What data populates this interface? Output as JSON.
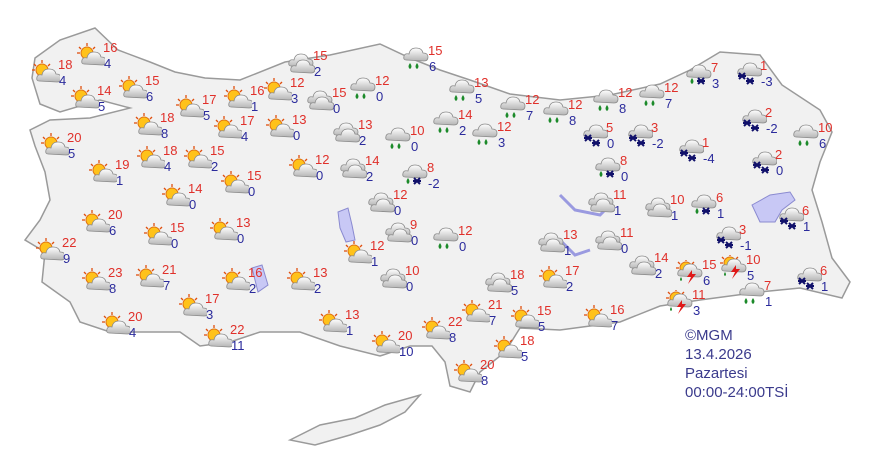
{
  "legend": {
    "copyright": "©MGM",
    "date": "13.4.2026",
    "weekday": "Pazartesi",
    "period": "00:00-24:00TSİ"
  },
  "colors": {
    "max_temp": "#e0302a",
    "min_temp": "#2b2b9c",
    "land": "#f1f1f1",
    "water": "#c8c8f5"
  },
  "icon_types": {
    "pc": "partly-cloudy",
    "cl": "cloudy",
    "rn": "rain",
    "sn": "snow",
    "rs": "rain-and-snow",
    "ts": "thunderstorm"
  },
  "stations": [
    {
      "icon": "pc",
      "max": "18",
      "min": "4"
    },
    {
      "icon": "pc",
      "max": "16",
      "min": "4"
    },
    {
      "icon": "pc",
      "max": "14",
      "min": "5"
    },
    {
      "icon": "pc",
      "max": "15",
      "min": "6"
    },
    {
      "icon": "pc",
      "max": "17",
      "min": "5"
    },
    {
      "icon": "pc",
      "max": "16",
      "min": "1"
    },
    {
      "icon": "pc",
      "max": "12",
      "min": "3"
    },
    {
      "icon": "pc",
      "max": "18",
      "min": "8"
    },
    {
      "icon": "pc",
      "max": "17",
      "min": "4"
    },
    {
      "icon": "pc",
      "max": "13",
      "min": "0"
    },
    {
      "icon": "cl",
      "max": "15",
      "min": "2"
    },
    {
      "icon": "cl",
      "max": "15",
      "min": "0"
    },
    {
      "icon": "rn",
      "max": "12",
      "min": "0"
    },
    {
      "icon": "rn",
      "max": "15",
      "min": "6"
    },
    {
      "icon": "pc",
      "max": "20",
      "min": "5"
    },
    {
      "icon": "pc",
      "max": "19",
      "min": "1"
    },
    {
      "icon": "pc",
      "max": "18",
      "min": "4"
    },
    {
      "icon": "pc",
      "max": "15",
      "min": "2"
    },
    {
      "icon": "pc",
      "max": "12",
      "min": "0"
    },
    {
      "icon": "cl",
      "max": "13",
      "min": "2"
    },
    {
      "icon": "rn",
      "max": "10",
      "min": "0"
    },
    {
      "icon": "cl",
      "max": "14",
      "min": "2"
    },
    {
      "icon": "rs",
      "max": "8",
      "min": "-2"
    },
    {
      "icon": "cl",
      "max": "12",
      "min": "0"
    },
    {
      "icon": "pc",
      "max": "14",
      "min": "0"
    },
    {
      "icon": "pc",
      "max": "15",
      "min": "0"
    },
    {
      "icon": "pc",
      "max": "20",
      "min": "6"
    },
    {
      "icon": "pc",
      "max": "15",
      "min": "0"
    },
    {
      "icon": "pc",
      "max": "13",
      "min": "0"
    },
    {
      "icon": "pc",
      "max": "22",
      "min": "9"
    },
    {
      "icon": "pc",
      "max": "23",
      "min": "8"
    },
    {
      "icon": "pc",
      "max": "21",
      "min": "7"
    },
    {
      "icon": "pc",
      "max": "16",
      "min": "2"
    },
    {
      "icon": "pc",
      "max": "13",
      "min": "2"
    },
    {
      "icon": "pc",
      "max": "17",
      "min": "3"
    },
    {
      "icon": "pc",
      "max": "20",
      "min": "4"
    },
    {
      "icon": "pc",
      "max": "22",
      "min": "11"
    },
    {
      "icon": "pc",
      "max": "12",
      "min": "1"
    },
    {
      "icon": "cl",
      "max": "9",
      "min": "0"
    },
    {
      "icon": "cl",
      "max": "10",
      "min": "0"
    },
    {
      "icon": "pc",
      "max": "13",
      "min": "1"
    },
    {
      "icon": "pc",
      "max": "20",
      "min": "10"
    },
    {
      "icon": "pc",
      "max": "22",
      "min": "8"
    },
    {
      "icon": "pc",
      "max": "20",
      "min": "8"
    },
    {
      "icon": "cl",
      "max": "18",
      "min": "5"
    },
    {
      "icon": "pc",
      "max": "17",
      "min": "2"
    },
    {
      "icon": "pc",
      "max": "21",
      "min": "7"
    },
    {
      "icon": "pc",
      "max": "15",
      "min": "5"
    },
    {
      "icon": "pc",
      "max": "18",
      "min": "5"
    },
    {
      "icon": "pc",
      "max": "16",
      "min": "7"
    },
    {
      "icon": "cl",
      "max": "13",
      "min": "1"
    },
    {
      "icon": "cl",
      "max": "11",
      "min": "0"
    },
    {
      "icon": "cl",
      "max": "11",
      "min": "1"
    },
    {
      "icon": "rn",
      "max": "12",
      "min": "0"
    },
    {
      "icon": "rn",
      "max": "13",
      "min": "5"
    },
    {
      "icon": "rn",
      "max": "12",
      "min": "7"
    },
    {
      "icon": "rn",
      "max": "12",
      "min": "8"
    },
    {
      "icon": "rn",
      "max": "12",
      "min": "8"
    },
    {
      "icon": "rn",
      "max": "12",
      "min": "7"
    },
    {
      "icon": "rs",
      "max": "7",
      "min": "3"
    },
    {
      "icon": "sn",
      "max": "1",
      "min": "-3"
    },
    {
      "icon": "rn",
      "max": "14",
      "min": "2"
    },
    {
      "icon": "rn",
      "max": "12",
      "min": "3"
    },
    {
      "icon": "sn",
      "max": "5",
      "min": "0"
    },
    {
      "icon": "sn",
      "max": "3",
      "min": "-2"
    },
    {
      "icon": "sn",
      "max": "1",
      "min": "-4"
    },
    {
      "icon": "sn",
      "max": "2",
      "min": "-2"
    },
    {
      "icon": "rn",
      "max": "10",
      "min": "6"
    },
    {
      "icon": "sn",
      "max": "2",
      "min": "0"
    },
    {
      "icon": "rs",
      "max": "8",
      "min": "0"
    },
    {
      "icon": "cl",
      "max": "10",
      "min": "1"
    },
    {
      "icon": "rs",
      "max": "6",
      "min": "1"
    },
    {
      "icon": "sn",
      "max": "6",
      "min": "1"
    },
    {
      "icon": "sn",
      "max": "3",
      "min": "-1"
    },
    {
      "icon": "cl",
      "max": "14",
      "min": "2"
    },
    {
      "icon": "ts",
      "max": "15",
      "min": "6"
    },
    {
      "icon": "ts",
      "max": "10",
      "min": "5"
    },
    {
      "icon": "ts",
      "max": "11",
      "min": "3"
    },
    {
      "icon": "rn",
      "max": "7",
      "min": "1"
    },
    {
      "icon": "sn",
      "max": "6",
      "min": "1"
    }
  ]
}
